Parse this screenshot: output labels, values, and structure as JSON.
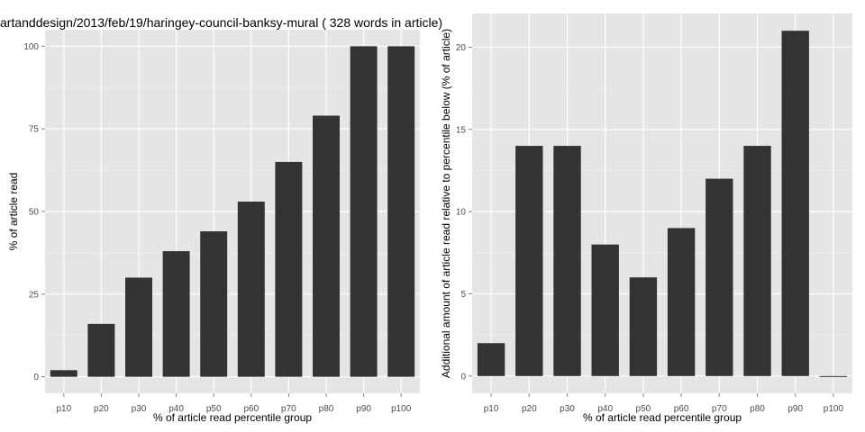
{
  "title": "artanddesign/2013/feb/19/haringey-council-banksy-mural ( 328 words in article)",
  "colors": {
    "panel": "#e5e5e5",
    "grid": "#ffffff",
    "bar": "#333333",
    "tick_text": "#4d4d4d"
  },
  "chart_data": [
    {
      "type": "bar",
      "categories": [
        "p10",
        "p20",
        "p30",
        "p40",
        "p50",
        "p60",
        "p70",
        "p80",
        "p90",
        "p100"
      ],
      "values": [
        2,
        16,
        30,
        38,
        44,
        53,
        65,
        79,
        100,
        100
      ],
      "xlabel": "% of article read percentile group",
      "ylabel": "% of article read",
      "ylim": [
        -5,
        105
      ],
      "yticks": [
        0,
        25,
        50,
        75,
        100
      ],
      "grid": true
    },
    {
      "type": "bar",
      "categories": [
        "p10",
        "p20",
        "p30",
        "p40",
        "p50",
        "p60",
        "p70",
        "p80",
        "p90",
        "p100"
      ],
      "values": [
        2,
        14,
        14,
        8,
        6,
        9,
        12,
        14,
        21,
        0
      ],
      "xlabel": "% of article read percentile group",
      "ylabel": "Additional amount of article read relative to percentile below (% of article)",
      "ylim": [
        -1.05,
        22.05
      ],
      "yticks": [
        0,
        5,
        10,
        15,
        20
      ],
      "grid": true
    }
  ]
}
